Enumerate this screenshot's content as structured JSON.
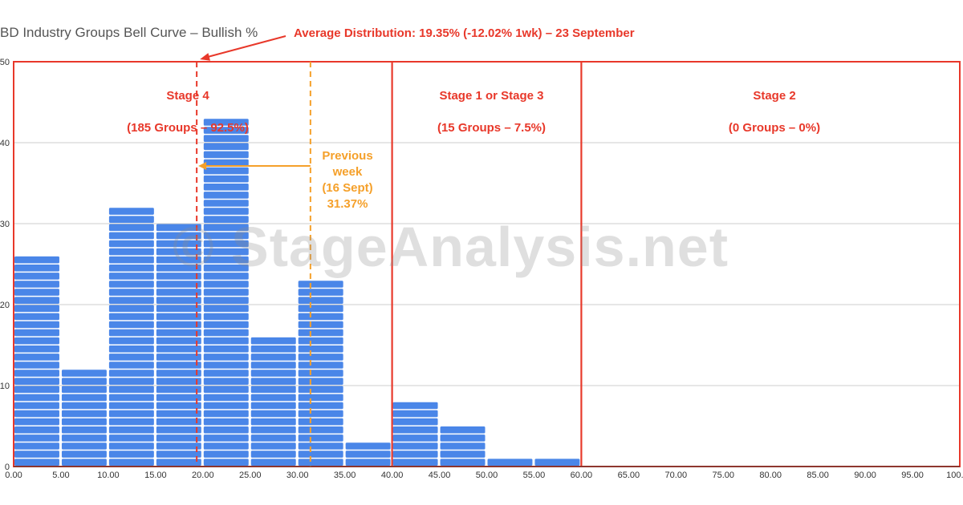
{
  "title": "BD Industry Groups Bell Curve – Bullish %",
  "annotation": "Average Distribution: 19.35% (-12.02% 1wk) – 23 September",
  "watermark": "© StageAnalysis.net",
  "previous_week": {
    "line1": "Previous",
    "line2": "week",
    "line3": "(16 Sept)",
    "line4": "31.37%",
    "value": 31.37
  },
  "average_value": 19.35,
  "stages": [
    {
      "name": "Stage 4",
      "detail": "(185 Groups – 92.5%)",
      "range": [
        0,
        40
      ]
    },
    {
      "name": "Stage 1 or Stage 3",
      "detail": "(15 Groups – 7.5%)",
      "range": [
        40,
        60
      ]
    },
    {
      "name": "Stage 2",
      "detail": "(0 Groups – 0%)",
      "range": [
        60,
        100
      ]
    }
  ],
  "colors": {
    "bar": "#4a86e8",
    "stage_border": "#e8382a",
    "average_line": "#e8382a",
    "previous_line": "#f5a02a",
    "grid": "#cccccc"
  },
  "chart_data": {
    "type": "bar",
    "title": "BD Industry Groups Bell Curve – Bullish %",
    "bin_width": 5,
    "bins_start": [
      0,
      5,
      10,
      15,
      20,
      25,
      30,
      35,
      40,
      45,
      50,
      55,
      60,
      65,
      70,
      75,
      80,
      85,
      90,
      95
    ],
    "values": [
      26,
      12,
      32,
      30,
      43,
      16,
      23,
      3,
      8,
      5,
      1,
      1,
      0,
      0,
      0,
      0,
      0,
      0,
      0,
      0
    ],
    "x_ticks": [
      "0.00",
      "5.00",
      "10.00",
      "15.00",
      "20.00",
      "25.00",
      "30.00",
      "35.00",
      "40.00",
      "45.00",
      "50.00",
      "55.00",
      "60.00",
      "65.00",
      "70.00",
      "75.00",
      "80.00",
      "85.00",
      "90.00",
      "95.00",
      "100.00"
    ],
    "y_ticks": [
      "0",
      "10",
      "20",
      "30",
      "40",
      "50"
    ],
    "xlim": [
      0,
      100
    ],
    "ylim": [
      0,
      50
    ],
    "grid": true
  }
}
